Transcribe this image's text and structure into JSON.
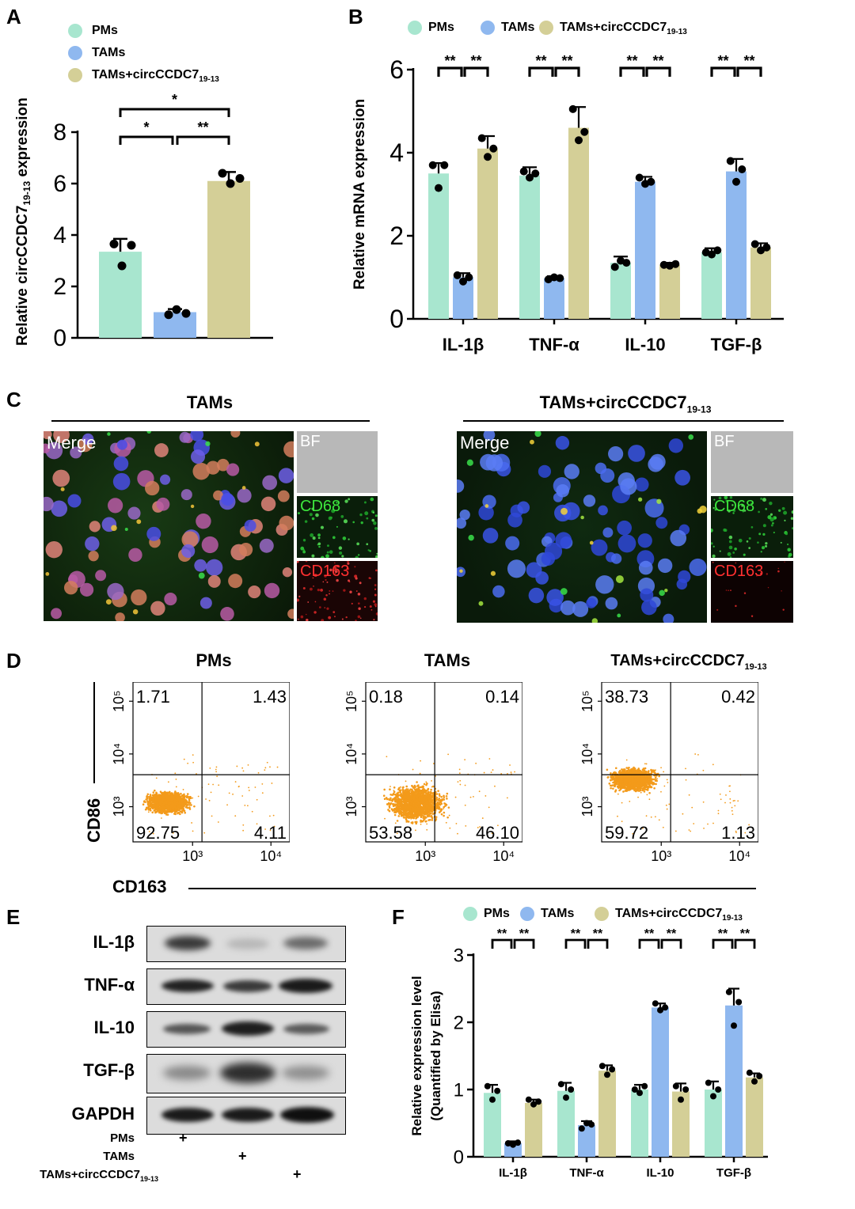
{
  "colors": {
    "pms": "#a8e6cf",
    "tams": "#8fb8ef",
    "tams_circ": "#d4cf97"
  },
  "panels": {
    "A": "A",
    "B": "B",
    "C": "C",
    "D": "D",
    "E": "E",
    "F": "F"
  },
  "legend": {
    "pms": "PMs",
    "tams": "TAMs",
    "tams_circ_base": "TAMs+circCCDC7",
    "tams_circ_sub": "19-13"
  },
  "panel_C": {
    "title_left": "TAMs",
    "title_right_base": "TAMs+circCCDC7",
    "title_right_sub": "19-13",
    "merge_label": "Merge",
    "bf_label": "BF",
    "cd68_label": "CD68",
    "cd163_label": "CD163"
  },
  "panel_D": {
    "titles": [
      "PMs",
      "TAMs",
      "TAMs+circCCDC7"
    ],
    "title3_sub": "19-13",
    "ylabel": "CD86",
    "xlabel": "CD163",
    "quadrants": [
      {
        "ul": "1.71",
        "ur": "1.43",
        "ll": "92.75",
        "lr": "4.11"
      },
      {
        "ul": "0.18",
        "ur": "0.14",
        "ll": "53.58",
        "lr": "46.10"
      },
      {
        "ul": "38.73",
        "ur": "0.42",
        "ll": "59.72",
        "lr": "1.13"
      }
    ],
    "xticks": [
      "10³",
      "10⁴"
    ],
    "yticks": [
      "10³",
      "10⁴",
      "10⁵"
    ]
  },
  "panel_E": {
    "rows": [
      "IL-1β",
      "TNF-α",
      "IL-10",
      "TGF-β",
      "GAPDH"
    ],
    "lanes": [
      "PMs",
      "TAMs",
      "TAMs+circCCDC7"
    ],
    "lane3_sub": "19-13",
    "plus": "+"
  },
  "chart_data": [
    {
      "panel": "A",
      "type": "bar",
      "categories": [
        "PMs",
        "TAMs",
        "TAMs+circCCDC7 19-13"
      ],
      "values": [
        3.35,
        1.0,
        6.1
      ],
      "errors": [
        0.5,
        0.12,
        0.35
      ],
      "points": [
        [
          3.65,
          2.8,
          3.6
        ],
        [
          0.9,
          1.1,
          0.95
        ],
        [
          6.4,
          6.0,
          6.2
        ]
      ],
      "ylabel": "Relative circCCDC7",
      "ylabel_sub": "19-13",
      "ylabel_tail": " expression",
      "ylim": [
        0,
        8
      ],
      "yticks": [
        "0",
        "2",
        "4",
        "6",
        "8"
      ],
      "significance": [
        {
          "pair": [
            0,
            1
          ],
          "label": "*"
        },
        {
          "pair": [
            1,
            2
          ],
          "label": "**"
        },
        {
          "pair": [
            0,
            2
          ],
          "label": "*"
        }
      ]
    },
    {
      "panel": "B",
      "type": "bar",
      "categories": [
        "IL-1β",
        "TNF-α",
        "IL-10",
        "TGF-β"
      ],
      "series": [
        {
          "name": "PMs",
          "values": [
            3.5,
            3.45,
            1.35,
            1.6
          ],
          "errors": [
            0.25,
            0.2,
            0.15,
            0.1
          ],
          "points": [
            [
              3.7,
              3.15,
              3.7
            ],
            [
              3.55,
              3.4,
              3.5
            ],
            [
              1.25,
              1.4,
              1.35
            ],
            [
              1.6,
              1.55,
              1.65
            ]
          ]
        },
        {
          "name": "TAMs",
          "values": [
            1.0,
            0.98,
            3.3,
            3.55
          ],
          "errors": [
            0.1,
            0.05,
            0.12,
            0.3
          ],
          "points": [
            [
              1.05,
              0.9,
              1.0
            ],
            [
              0.95,
              1.0,
              0.98
            ],
            [
              3.4,
              3.25,
              3.3
            ],
            [
              3.8,
              3.3,
              3.6
            ]
          ]
        },
        {
          "name": "TAMs+circCCDC7 19-13",
          "values": [
            4.1,
            4.6,
            1.3,
            1.72
          ],
          "errors": [
            0.3,
            0.5,
            0.05,
            0.1
          ],
          "points": [
            [
              4.35,
              3.9,
              4.1
            ],
            [
              5.05,
              4.3,
              4.5
            ],
            [
              1.3,
              1.28,
              1.32
            ],
            [
              1.8,
              1.65,
              1.72
            ]
          ]
        }
      ],
      "ylabel": "Relative mRNA expression",
      "ylim": [
        0,
        6
      ],
      "yticks": [
        "0",
        "2",
        "4",
        "6"
      ],
      "sig_label": "**"
    },
    {
      "panel": "F",
      "type": "bar",
      "categories": [
        "IL-1β",
        "TNF-α",
        "IL-10",
        "TGF-β"
      ],
      "series": [
        {
          "name": "PMs",
          "values": [
            0.95,
            0.98,
            1.0,
            1.0
          ],
          "errors": [
            0.12,
            0.12,
            0.07,
            0.12
          ],
          "points": [
            [
              1.05,
              0.85,
              0.98
            ],
            [
              1.08,
              0.88,
              1.0
            ],
            [
              1.0,
              0.95,
              1.05
            ],
            [
              1.1,
              0.9,
              1.0
            ]
          ]
        },
        {
          "name": "TAMs",
          "values": [
            0.2,
            0.47,
            2.22,
            2.25
          ],
          "errors": [
            0.03,
            0.06,
            0.06,
            0.25
          ],
          "points": [
            [
              0.2,
              0.18,
              0.21
            ],
            [
              0.42,
              0.5,
              0.48
            ],
            [
              2.28,
              2.18,
              2.22
            ],
            [
              2.45,
              1.95,
              2.3
            ]
          ]
        },
        {
          "name": "TAMs+circCCDC7 19-13",
          "values": [
            0.8,
            1.28,
            0.97,
            1.18
          ],
          "errors": [
            0.05,
            0.08,
            0.12,
            0.06
          ],
          "points": [
            [
              0.85,
              0.78,
              0.82
            ],
            [
              1.35,
              1.22,
              1.3
            ],
            [
              1.05,
              0.85,
              1.0
            ],
            [
              1.25,
              1.12,
              1.2
            ]
          ]
        }
      ],
      "ylabel": "Relative expression level",
      "ylabel2": "(Quantified by Elisa)",
      "ylim": [
        0,
        3
      ],
      "yticks": [
        "0",
        "1",
        "2",
        "3"
      ],
      "sig_label": "**"
    }
  ]
}
